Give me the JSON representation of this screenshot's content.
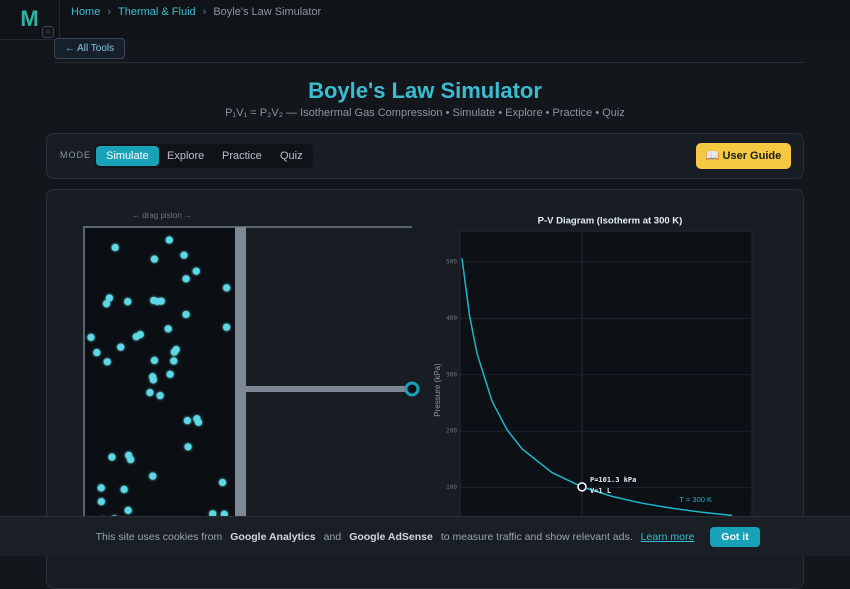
{
  "header": {
    "logo": "M",
    "breadcrumbs": [
      "Home",
      "Thermal & Fluid",
      "Boyle's Law Simulator"
    ],
    "back_button": "← All Tools"
  },
  "title": "Boyle's Law Simulator",
  "subtitle": "P₁V₁ = P₂V₂ — Isothermal Gas Compression • Simulate • Explore • Practice • Quiz",
  "mode": {
    "label": "MODE",
    "tabs": [
      "Simulate",
      "Explore",
      "Practice",
      "Quiz"
    ],
    "active": 0,
    "guide_button": "📖 User Guide"
  },
  "simulator": {
    "drag_hint": "← drag piston →"
  },
  "chart_data": {
    "type": "line",
    "title": "P-V Diagram (Isotherm at 300 K)",
    "y_label": "Pressure (kPa)",
    "x": [
      0.2,
      0.25,
      0.3,
      0.4,
      0.5,
      0.6,
      0.8,
      1,
      1.2,
      1.4,
      1.6,
      1.8,
      2.0
    ],
    "values": [
      506.5,
      405.2,
      337.7,
      253.3,
      202.6,
      168.8,
      126.6,
      101.3,
      84.4,
      72.4,
      63.3,
      56.3,
      50.7
    ],
    "color": "#1fb5c9",
    "xlim": [
      0.187,
      2.133
    ],
    "ylim": [
      0,
      555
    ],
    "yticks": [
      100,
      200,
      300,
      400,
      500
    ],
    "grid": true,
    "marker": {
      "x": 1,
      "y": 101.3,
      "labels": [
        "P=101.3 kPa",
        "V=1 L"
      ]
    },
    "curve_label": "T = 300 K"
  },
  "cookie": {
    "before": "This site uses cookies from",
    "analytics": "Google Analytics",
    "and": "and",
    "adsense": "Google AdSense",
    "after": "to measure traffic and show relevant ads.",
    "link": "Learn more",
    "button": "Got it"
  }
}
